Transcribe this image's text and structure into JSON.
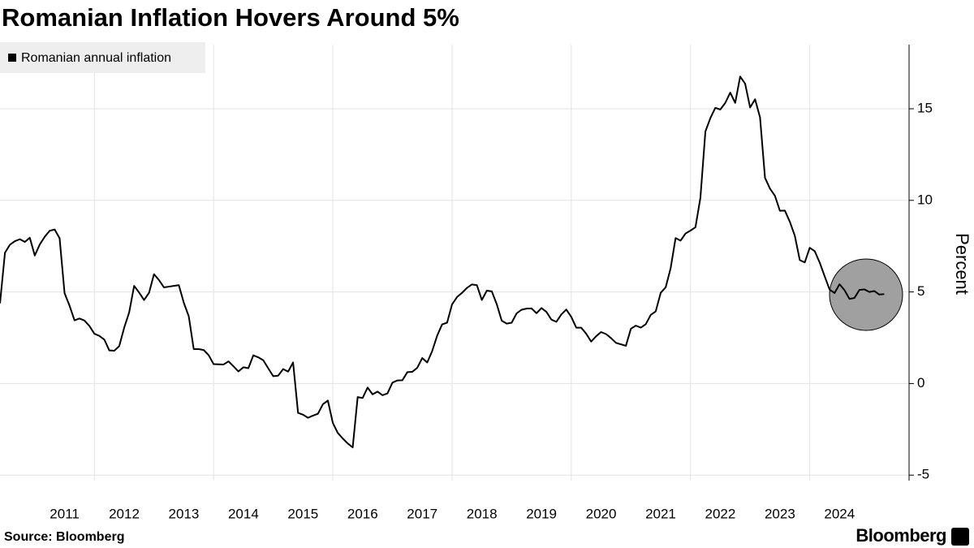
{
  "chart_data": {
    "type": "line",
    "title": "Romanian Inflation Hovers Around 5%",
    "source": "Source: Bloomberg",
    "brand": "Bloomberg",
    "ylabel": "Percent",
    "legend": "top-left",
    "grid": true,
    "xlim": [
      "2010-06",
      "2025-09"
    ],
    "xticks": [
      2011,
      2012,
      2013,
      2014,
      2015,
      2016,
      2017,
      2018,
      2019,
      2020,
      2021,
      2022,
      2023,
      2024
    ],
    "ylim": [
      -5.3,
      18.5
    ],
    "yticks": [
      -5,
      0,
      5,
      10,
      15
    ],
    "x": [
      "2010-06",
      "2010-07",
      "2010-08",
      "2010-09",
      "2010-10",
      "2010-11",
      "2010-12",
      "2011-01",
      "2011-02",
      "2011-03",
      "2011-04",
      "2011-05",
      "2011-06",
      "2011-07",
      "2011-08",
      "2011-09",
      "2011-10",
      "2011-11",
      "2011-12",
      "2012-01",
      "2012-02",
      "2012-03",
      "2012-04",
      "2012-05",
      "2012-06",
      "2012-07",
      "2012-08",
      "2012-09",
      "2012-10",
      "2012-11",
      "2012-12",
      "2013-01",
      "2013-02",
      "2013-03",
      "2013-04",
      "2013-05",
      "2013-06",
      "2013-07",
      "2013-08",
      "2013-09",
      "2013-10",
      "2013-11",
      "2013-12",
      "2014-01",
      "2014-02",
      "2014-03",
      "2014-04",
      "2014-05",
      "2014-06",
      "2014-07",
      "2014-08",
      "2014-09",
      "2014-10",
      "2014-11",
      "2014-12",
      "2015-01",
      "2015-02",
      "2015-03",
      "2015-04",
      "2015-05",
      "2015-06",
      "2015-07",
      "2015-08",
      "2015-09",
      "2015-10",
      "2015-11",
      "2015-12",
      "2016-01",
      "2016-02",
      "2016-03",
      "2016-04",
      "2016-05",
      "2016-06",
      "2016-07",
      "2016-08",
      "2016-09",
      "2016-10",
      "2016-11",
      "2016-12",
      "2017-01",
      "2017-02",
      "2017-03",
      "2017-04",
      "2017-05",
      "2017-06",
      "2017-07",
      "2017-08",
      "2017-09",
      "2017-10",
      "2017-11",
      "2017-12",
      "2018-01",
      "2018-02",
      "2018-03",
      "2018-04",
      "2018-05",
      "2018-06",
      "2018-07",
      "2018-08",
      "2018-09",
      "2018-10",
      "2018-11",
      "2018-12",
      "2019-01",
      "2019-02",
      "2019-03",
      "2019-04",
      "2019-05",
      "2019-06",
      "2019-07",
      "2019-08",
      "2019-09",
      "2019-10",
      "2019-11",
      "2019-12",
      "2020-01",
      "2020-02",
      "2020-03",
      "2020-04",
      "2020-05",
      "2020-06",
      "2020-07",
      "2020-08",
      "2020-09",
      "2020-10",
      "2020-11",
      "2020-12",
      "2021-01",
      "2021-02",
      "2021-03",
      "2021-04",
      "2021-05",
      "2021-06",
      "2021-07",
      "2021-08",
      "2021-09",
      "2021-10",
      "2021-11",
      "2021-12",
      "2022-01",
      "2022-02",
      "2022-03",
      "2022-04",
      "2022-05",
      "2022-06",
      "2022-07",
      "2022-08",
      "2022-09",
      "2022-10",
      "2022-11",
      "2022-12",
      "2023-01",
      "2023-02",
      "2023-03",
      "2023-04",
      "2023-05",
      "2023-06",
      "2023-07",
      "2023-08",
      "2023-09",
      "2023-10",
      "2023-11",
      "2023-12",
      "2024-01",
      "2024-02",
      "2024-03",
      "2024-04",
      "2024-05",
      "2024-06",
      "2024-07",
      "2024-08",
      "2024-09",
      "2024-10",
      "2024-11",
      "2024-12",
      "2025-01",
      "2025-02",
      "2025-03",
      "2025-04"
    ],
    "series": [
      {
        "name": "Romanian annual inflation",
        "color": "#000000",
        "values": [
          4.38,
          7.14,
          7.58,
          7.77,
          7.88,
          7.73,
          7.96,
          6.99,
          7.59,
          8.01,
          8.34,
          8.41,
          7.93,
          4.93,
          4.25,
          3.45,
          3.55,
          3.44,
          3.14,
          2.72,
          2.6,
          2.4,
          1.81,
          1.79,
          2.04,
          3.05,
          3.88,
          5.33,
          4.97,
          4.56,
          4.95,
          5.97,
          5.65,
          5.25,
          5.29,
          5.33,
          5.37,
          4.41,
          3.67,
          1.88,
          1.88,
          1.83,
          1.55,
          1.06,
          1.05,
          1.04,
          1.21,
          0.94,
          0.66,
          0.89,
          0.84,
          1.54,
          1.43,
          1.27,
          0.83,
          0.4,
          0.43,
          0.79,
          0.65,
          1.15,
          -1.6,
          -1.7,
          -1.87,
          -1.75,
          -1.65,
          -1.13,
          -0.93,
          -2.15,
          -2.7,
          -3.0,
          -3.27,
          -3.49,
          -0.74,
          -0.79,
          -0.22,
          -0.59,
          -0.44,
          -0.64,
          -0.54,
          0.05,
          0.17,
          0.18,
          0.62,
          0.64,
          0.86,
          1.39,
          1.15,
          1.77,
          2.61,
          3.23,
          3.32,
          4.32,
          4.72,
          4.95,
          5.22,
          5.41,
          5.37,
          4.56,
          5.07,
          5.03,
          4.33,
          3.43,
          3.27,
          3.32,
          3.83,
          4.03,
          4.09,
          4.1,
          3.84,
          4.12,
          3.91,
          3.49,
          3.37,
          3.77,
          4.04,
          3.64,
          3.05,
          3.05,
          2.72,
          2.29,
          2.58,
          2.81,
          2.7,
          2.48,
          2.22,
          2.14,
          2.06,
          2.99,
          3.16,
          3.05,
          3.24,
          3.75,
          3.94,
          4.95,
          5.25,
          6.29,
          7.94,
          7.8,
          8.19,
          8.35,
          8.53,
          10.15,
          13.76,
          14.49,
          15.05,
          14.96,
          15.32,
          15.88,
          15.32,
          16.76,
          16.37,
          15.07,
          15.52,
          14.53,
          11.23,
          10.64,
          10.25,
          9.43,
          9.44,
          8.83,
          8.07,
          6.74,
          6.61,
          7.41,
          7.23,
          6.61,
          5.86,
          5.13,
          4.94,
          5.42,
          5.1,
          4.62,
          4.67,
          5.11,
          5.14,
          5.0,
          5.05,
          4.86,
          4.88
        ]
      }
    ]
  }
}
